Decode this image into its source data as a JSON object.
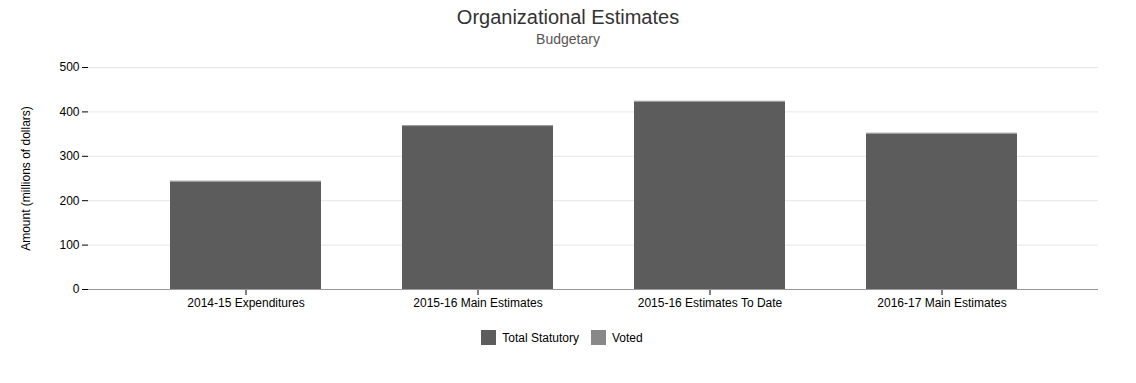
{
  "chart_data": {
    "type": "bar",
    "stacked": true,
    "title": "Organizational Estimates",
    "subtitle": "Budgetary",
    "ylabel": "Amount (millions of dollars)",
    "categories": [
      "2014-15 Expenditures",
      "2015-16 Main Estimates",
      "2015-16 Estimates To Date",
      "2016-17 Main Estimates"
    ],
    "series": [
      {
        "name": "Total Statutory",
        "color": "#5c5c5c",
        "values": [
          242,
          367,
          422,
          350
        ]
      },
      {
        "name": "Voted",
        "color": "#888888",
        "values": [
          2,
          2,
          2,
          2
        ]
      }
    ],
    "ylim": [
      0,
      500
    ],
    "yticks": [
      0,
      100,
      200,
      300,
      400,
      500
    ],
    "grid": true,
    "legend": "bottom"
  }
}
